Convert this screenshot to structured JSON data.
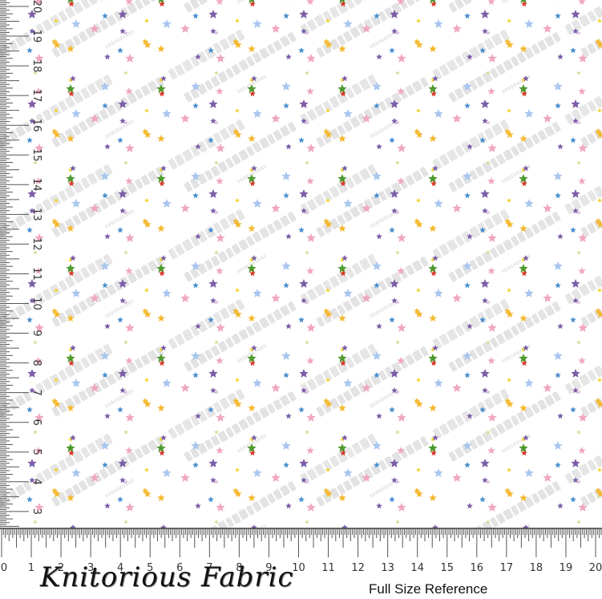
{
  "swatch": {
    "watermark_brand": "Knitorious Fabric",
    "watermark_notice": "DO NOT COPY",
    "star_colors": [
      "#f5b82e",
      "#7b5ea7",
      "#4e9a2e",
      "#f0a7c0",
      "#a9c6ee",
      "#f2d22a",
      "#d83a2a",
      "#4a8fd0",
      "#cfe29a",
      "#dcc0e0"
    ],
    "background": "#ffffff"
  },
  "ruler": {
    "unit": "inch",
    "horizontal_labels": [
      "0",
      "1",
      "2",
      "3",
      "4",
      "5",
      "6",
      "7",
      "8",
      "9",
      "10",
      "11",
      "12",
      "13",
      "14",
      "15",
      "16",
      "17",
      "18",
      "19",
      "20"
    ],
    "vertical_labels": [
      "3",
      "4",
      "5",
      "6",
      "7",
      "8",
      "9",
      "10",
      "11",
      "12",
      "13",
      "14",
      "15",
      "16",
      "17",
      "18",
      "19",
      "20"
    ]
  },
  "footer": {
    "logo_text": "Knitorious Fabric",
    "caption": "Full Size Reference"
  }
}
